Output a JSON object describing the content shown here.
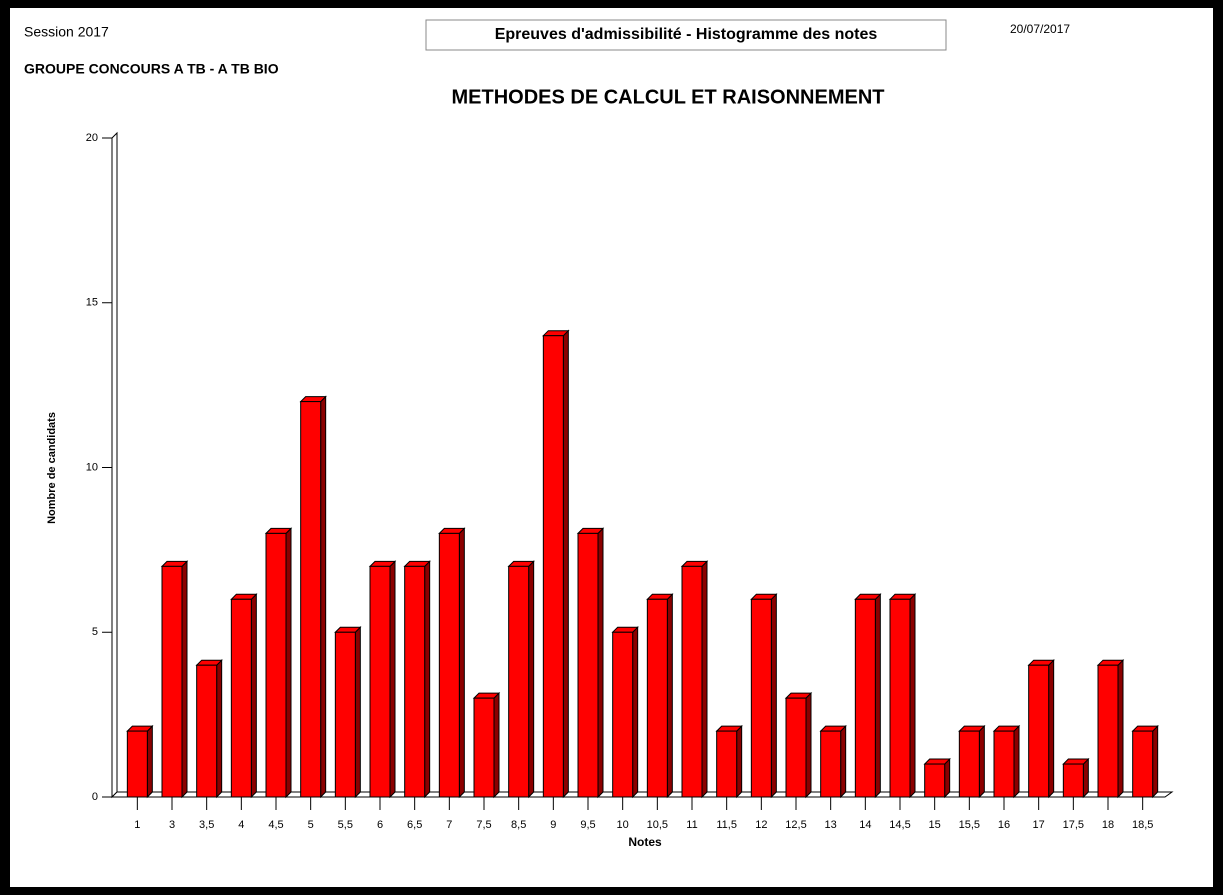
{
  "header": {
    "session": "Session 2017",
    "banner": "Epreuves d'admissibilité - Histogramme des notes",
    "date": "20/07/2017",
    "group": "GROUPE CONCOURS A TB - A TB BIO"
  },
  "chart_data": {
    "type": "bar",
    "title": "METHODES DE CALCUL ET RAISONNEMENT",
    "x_label": "Notes",
    "y_label": "Nombre de candidats",
    "categories": [
      "1",
      "3",
      "3,5",
      "4",
      "4,5",
      "5",
      "5,5",
      "6",
      "6,5",
      "7",
      "7,5",
      "8,5",
      "9",
      "9,5",
      "10",
      "10,5",
      "11",
      "11,5",
      "12",
      "12,5",
      "13",
      "14",
      "14,5",
      "15",
      "15,5",
      "16",
      "17",
      "17,5",
      "18",
      "18,5"
    ],
    "values": [
      2,
      7,
      4,
      6,
      8,
      12,
      5,
      7,
      7,
      8,
      3,
      7,
      14,
      8,
      5,
      6,
      7,
      2,
      6,
      3,
      2,
      6,
      6,
      1,
      2,
      2,
      4,
      1,
      4,
      2
    ],
    "color": "#ff0000",
    "ylim": [
      0,
      20
    ],
    "yticks": [
      0,
      5,
      10,
      15,
      20
    ],
    "grid": false
  }
}
